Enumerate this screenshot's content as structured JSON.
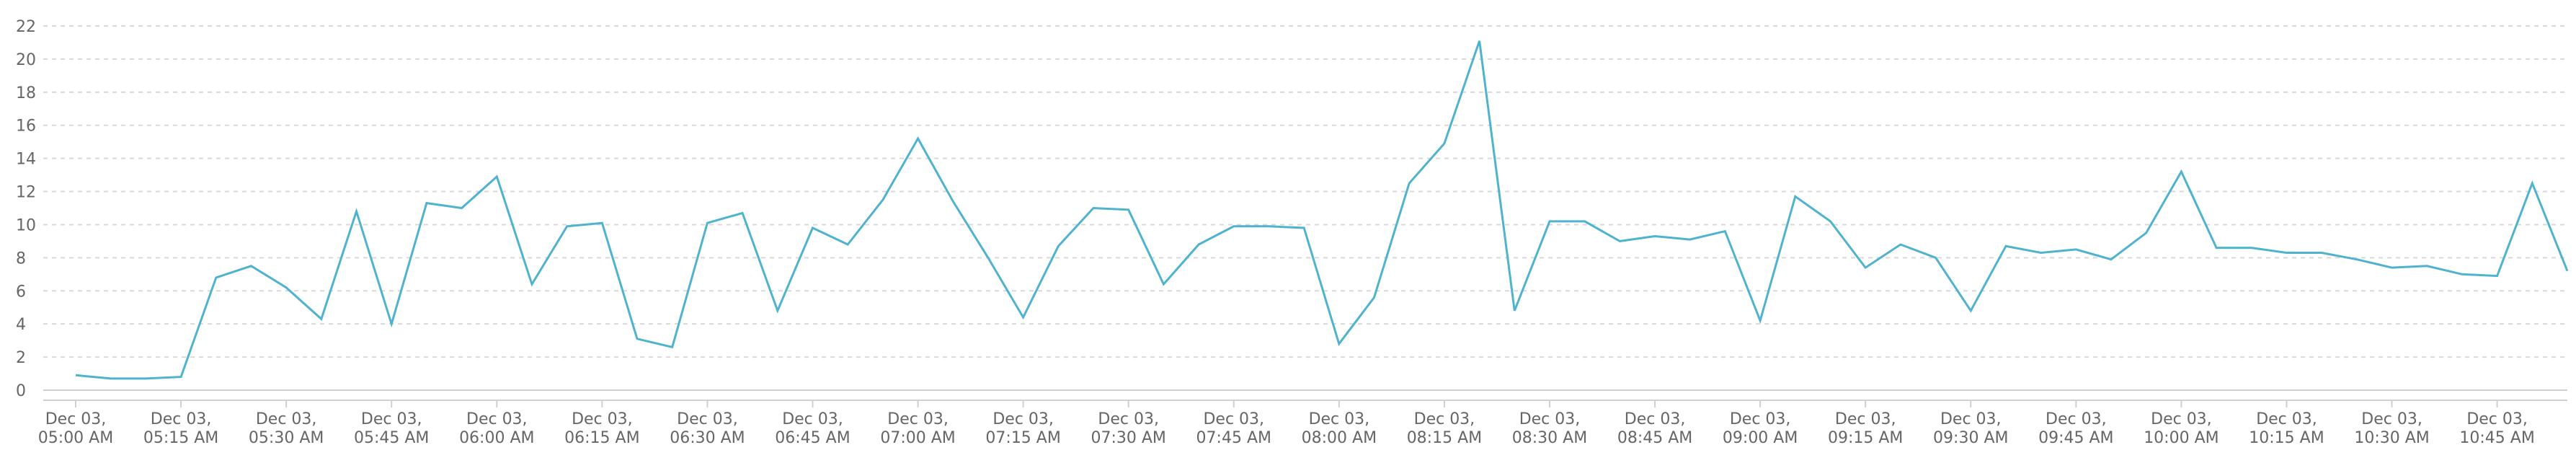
{
  "chart_data": {
    "type": "line",
    "title": "",
    "xlabel": "",
    "ylabel": "",
    "ylim": [
      0,
      22
    ],
    "yticks": [
      "0",
      "2",
      "4",
      "6",
      "8",
      "10",
      "12",
      "14",
      "16",
      "18",
      "20",
      "22"
    ],
    "grid": true,
    "legend": "none",
    "x": [
      "05:00",
      "05:05",
      "05:10",
      "05:15",
      "05:20",
      "05:25",
      "05:30",
      "05:35",
      "05:40",
      "05:45",
      "05:50",
      "05:55",
      "06:00",
      "06:05",
      "06:10",
      "06:15",
      "06:20",
      "06:25",
      "06:30",
      "06:35",
      "06:40",
      "06:45",
      "06:50",
      "06:55",
      "07:00",
      "07:05",
      "07:10",
      "07:15",
      "07:20",
      "07:25",
      "07:30",
      "07:35",
      "07:40",
      "07:45",
      "07:50",
      "07:55",
      "08:00",
      "08:05",
      "08:10",
      "08:15",
      "08:20",
      "08:25",
      "08:30",
      "08:35",
      "08:40",
      "08:45",
      "08:50",
      "08:55",
      "09:00",
      "09:05",
      "09:10",
      "09:15",
      "09:20",
      "09:25",
      "09:30",
      "09:35",
      "09:40",
      "09:45",
      "09:50",
      "09:55",
      "10:00",
      "10:05",
      "10:10",
      "10:15",
      "10:20",
      "10:25",
      "10:30",
      "10:35",
      "10:40",
      "10:45",
      "10:50",
      "10:55"
    ],
    "xticks": [
      {
        "x": "05:00",
        "line1": "Dec 03,",
        "line2": "05:00 AM"
      },
      {
        "x": "05:15",
        "line1": "Dec 03,",
        "line2": "05:15 AM"
      },
      {
        "x": "05:30",
        "line1": "Dec 03,",
        "line2": "05:30 AM"
      },
      {
        "x": "05:45",
        "line1": "Dec 03,",
        "line2": "05:45 AM"
      },
      {
        "x": "06:00",
        "line1": "Dec 03,",
        "line2": "06:00 AM"
      },
      {
        "x": "06:15",
        "line1": "Dec 03,",
        "line2": "06:15 AM"
      },
      {
        "x": "06:30",
        "line1": "Dec 03,",
        "line2": "06:30 AM"
      },
      {
        "x": "06:45",
        "line1": "Dec 03,",
        "line2": "06:45 AM"
      },
      {
        "x": "07:00",
        "line1": "Dec 03,",
        "line2": "07:00 AM"
      },
      {
        "x": "07:15",
        "line1": "Dec 03,",
        "line2": "07:15 AM"
      },
      {
        "x": "07:30",
        "line1": "Dec 03,",
        "line2": "07:30 AM"
      },
      {
        "x": "07:45",
        "line1": "Dec 03,",
        "line2": "07:45 AM"
      },
      {
        "x": "08:00",
        "line1": "Dec 03,",
        "line2": "08:00 AM"
      },
      {
        "x": "08:15",
        "line1": "Dec 03,",
        "line2": "08:15 AM"
      },
      {
        "x": "08:30",
        "line1": "Dec 03,",
        "line2": "08:30 AM"
      },
      {
        "x": "08:45",
        "line1": "Dec 03,",
        "line2": "08:45 AM"
      },
      {
        "x": "09:00",
        "line1": "Dec 03,",
        "line2": "09:00 AM"
      },
      {
        "x": "09:15",
        "line1": "Dec 03,",
        "line2": "09:15 AM"
      },
      {
        "x": "09:30",
        "line1": "Dec 03,",
        "line2": "09:30 AM"
      },
      {
        "x": "09:45",
        "line1": "Dec 03,",
        "line2": "09:45 AM"
      },
      {
        "x": "10:00",
        "line1": "Dec 03,",
        "line2": "10:00 AM"
      },
      {
        "x": "10:15",
        "line1": "Dec 03,",
        "line2": "10:15 AM"
      },
      {
        "x": "10:30",
        "line1": "Dec 03,",
        "line2": "10:30 AM"
      },
      {
        "x": "10:45",
        "line1": "Dec 03,",
        "line2": "10:45 AM"
      }
    ],
    "series": [
      {
        "color": "#4fb3cf",
        "values": [
          0.9,
          0.7,
          0.7,
          0.8,
          6.8,
          7.5,
          6.2,
          4.3,
          10.8,
          4.0,
          11.3,
          11.0,
          12.9,
          6.4,
          9.9,
          10.1,
          3.1,
          2.6,
          10.1,
          10.7,
          4.8,
          9.8,
          8.8,
          11.5,
          15.2,
          11.4,
          8.0,
          4.4,
          8.7,
          11.0,
          10.9,
          6.4,
          8.8,
          9.9,
          9.9,
          9.8,
          2.8,
          5.6,
          12.5,
          14.9,
          21.1,
          4.8,
          10.2,
          10.2,
          9.0,
          9.3,
          9.1,
          9.6,
          4.2,
          11.7,
          10.2,
          7.4,
          8.8,
          8.0,
          4.8,
          8.7,
          8.3,
          8.5,
          7.9,
          9.5,
          13.2,
          8.6,
          8.6,
          8.3,
          8.3,
          7.9,
          7.4,
          7.5,
          7.0,
          6.9,
          12.5,
          7.2
        ]
      }
    ]
  }
}
